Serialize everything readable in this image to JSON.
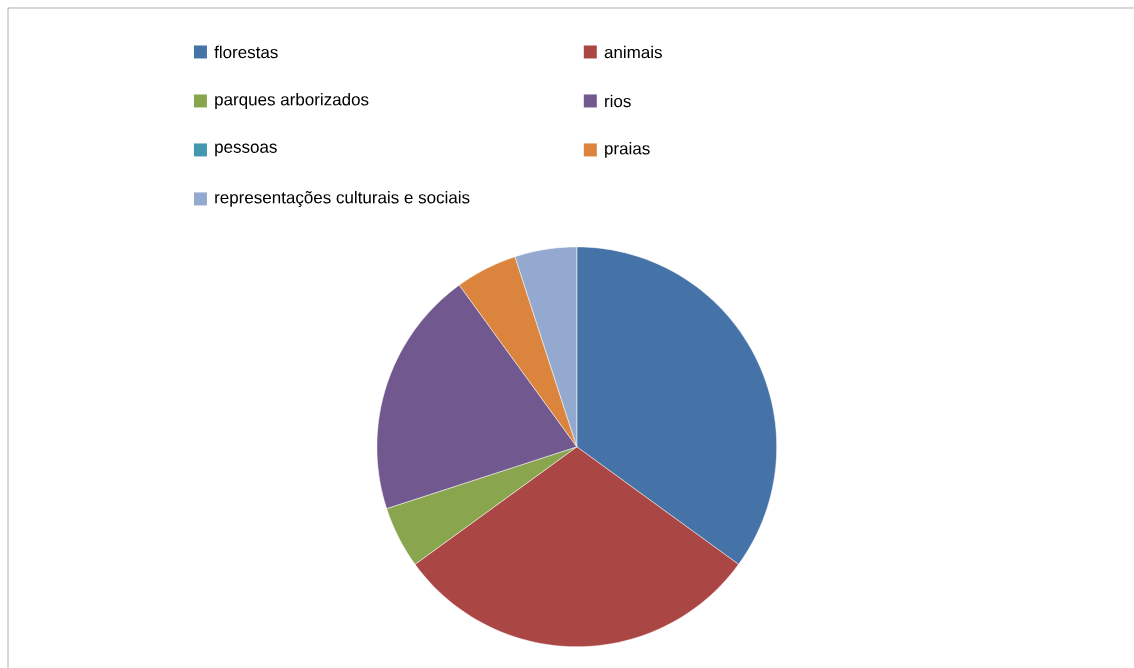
{
  "chart_data": {
    "type": "pie",
    "categories": [
      "florestas",
      "animais",
      "parques arborizados",
      "rios",
      "pessoas",
      "praias",
      "representações culturais e sociais"
    ],
    "values": [
      35,
      30,
      5,
      20,
      0,
      5,
      5
    ],
    "colors": [
      "#4572a7",
      "#aa4643",
      "#89a54e",
      "#71588f",
      "#4198af",
      "#db843d",
      "#93a9cf"
    ],
    "legend": "top"
  }
}
